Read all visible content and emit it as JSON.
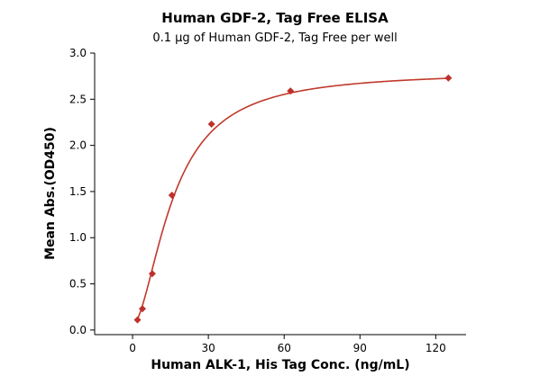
{
  "chart_data": {
    "type": "scatter",
    "title": "Human GDF-2, Tag Free ELISA",
    "subtitle": "0.1 µg of Human GDF-2, Tag Free per well",
    "xlabel": "Human ALK-1, His Tag Conc. (ng/mL)",
    "ylabel": "Mean Abs.(OD450)",
    "xlim": [
      -15,
      132
    ],
    "ylim": [
      -0.05,
      3.0
    ],
    "xticks": [
      0,
      30,
      60,
      90,
      120
    ],
    "yticks": [
      0.0,
      0.5,
      1.0,
      1.5,
      2.0,
      2.5,
      3.0
    ],
    "xtick_labels": [
      "0",
      "30",
      "60",
      "90",
      "120"
    ],
    "ytick_labels": [
      "0.0",
      "0.5",
      "1.0",
      "1.5",
      "2.0",
      "2.5",
      "3.0"
    ],
    "grid": false,
    "legend": "none",
    "series": [
      {
        "points": [
          {
            "x": 1.95,
            "y": 0.11
          },
          {
            "x": 3.9,
            "y": 0.23
          },
          {
            "x": 7.8,
            "y": 0.61
          },
          {
            "x": 15.6,
            "y": 1.46
          },
          {
            "x": 31.25,
            "y": 2.23
          },
          {
            "x": 62.5,
            "y": 2.59
          },
          {
            "x": 125,
            "y": 2.73
          }
        ],
        "fit": "four-parameter logistic",
        "color": "#c0302b"
      }
    ]
  }
}
